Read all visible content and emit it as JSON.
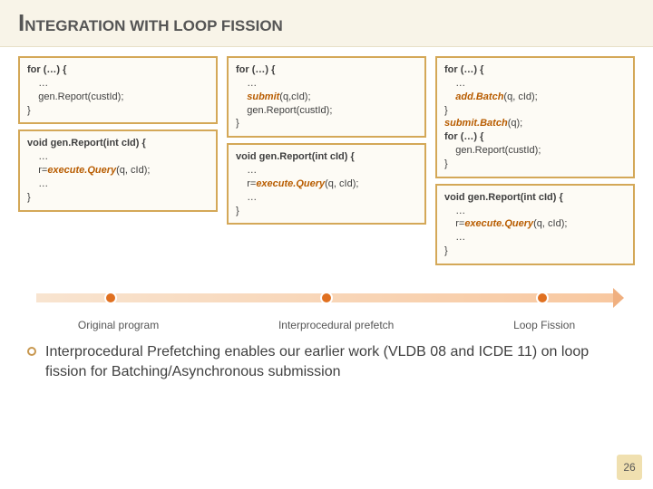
{
  "title_caps": "I",
  "title_rest1": "NTEGRATION",
  "title_caps2": " WITH LOOP FISSION",
  "col1": {
    "box1": [
      {
        "t": "for (…) {",
        "kw": true
      },
      {
        "t": "    …"
      },
      {
        "t": "    gen.Report(custId);"
      },
      {
        "t": "}"
      }
    ],
    "box2": [
      {
        "t": "void gen.Report(int cId) {",
        "kw": true
      },
      {
        "t": "    …"
      },
      {
        "t": "    r=<i>execute.Query</i>(q, cId);"
      },
      {
        "t": "    …"
      },
      {
        "t": "}"
      }
    ]
  },
  "col2": {
    "box1": [
      {
        "t": "for (…) {",
        "kw": true
      },
      {
        "t": "    …"
      },
      {
        "t": "    <b>submit</b>(q,cId);"
      },
      {
        "t": "    gen.Report(custId);"
      },
      {
        "t": "}"
      }
    ],
    "box2": [
      {
        "t": "void gen.Report(int cId) {",
        "kw": true
      },
      {
        "t": "    …"
      },
      {
        "t": "    r=<i>execute.Query</i>(q, cId);"
      },
      {
        "t": "    …"
      },
      {
        "t": "}"
      }
    ]
  },
  "col3": {
    "box1": [
      {
        "t": "for (…) {",
        "kw": true
      },
      {
        "t": "    …"
      },
      {
        "t": "    <b>add.Batch</b>(q, cId);"
      },
      {
        "t": "}"
      },
      {
        "t": "<b>submit.Batch</b>(q);"
      },
      {
        "t": "for (…) {",
        "kw": true
      },
      {
        "t": "    gen.Report(custId);"
      },
      {
        "t": "}"
      }
    ],
    "box2": [
      {
        "t": "void gen.Report(int cId) {",
        "kw": true
      },
      {
        "t": "    …"
      },
      {
        "t": "    r=<i>execute.Query</i>(q, cId);"
      },
      {
        "t": "    …"
      },
      {
        "t": "}"
      }
    ]
  },
  "timeline": {
    "dots": [
      15,
      50,
      85
    ]
  },
  "labels": [
    "Original program",
    "Interprocedural prefetch",
    "Loop Fission"
  ],
  "bullet": "Interprocedural Prefetching enables our earlier work (VLDB 08 and ICDE 11) on loop fission for Batching/Asynchronous submission",
  "pagenum": "26",
  "colors": {
    "box_border": "#d4a858",
    "highlight": "#b85c00",
    "dot": "#e07020"
  }
}
